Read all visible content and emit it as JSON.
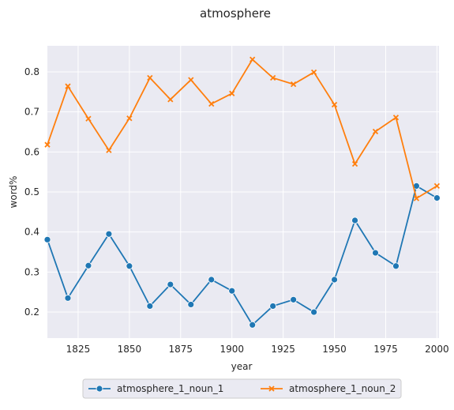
{
  "chart_data": {
    "type": "line",
    "title": "atmosphere",
    "xlabel": "year",
    "ylabel": "word%",
    "xlim": [
      1810,
      2001
    ],
    "ylim": [
      0.135,
      0.865
    ],
    "xticks": [
      1825,
      1850,
      1875,
      1900,
      1925,
      1950,
      1975,
      2000
    ],
    "yticks": [
      0.2,
      0.3,
      0.4,
      0.5,
      0.6,
      0.7,
      0.8
    ],
    "grid": true,
    "legend_placement": "bottom-center, outside plot",
    "background_color": "#eaeaf2",
    "x": [
      1810,
      1820,
      1830,
      1840,
      1850,
      1860,
      1870,
      1880,
      1890,
      1900,
      1910,
      1920,
      1930,
      1940,
      1950,
      1960,
      1970,
      1980,
      1990,
      2000
    ],
    "series": [
      {
        "name": "atmosphere_1_noun_1",
        "color": "#1f77b4",
        "marker": "circle",
        "values": [
          0.381,
          0.235,
          0.316,
          0.395,
          0.315,
          0.215,
          0.269,
          0.219,
          0.281,
          0.253,
          0.168,
          0.215,
          0.231,
          0.2,
          0.281,
          0.429,
          0.348,
          0.315,
          0.515,
          0.485
        ]
      },
      {
        "name": "atmosphere_1_noun_2",
        "color": "#ff7f0e",
        "marker": "x",
        "values": [
          0.618,
          0.764,
          0.683,
          0.604,
          0.684,
          0.785,
          0.731,
          0.78,
          0.72,
          0.746,
          0.831,
          0.785,
          0.769,
          0.799,
          0.718,
          0.57,
          0.651,
          0.686,
          0.484,
          0.515
        ]
      }
    ]
  }
}
